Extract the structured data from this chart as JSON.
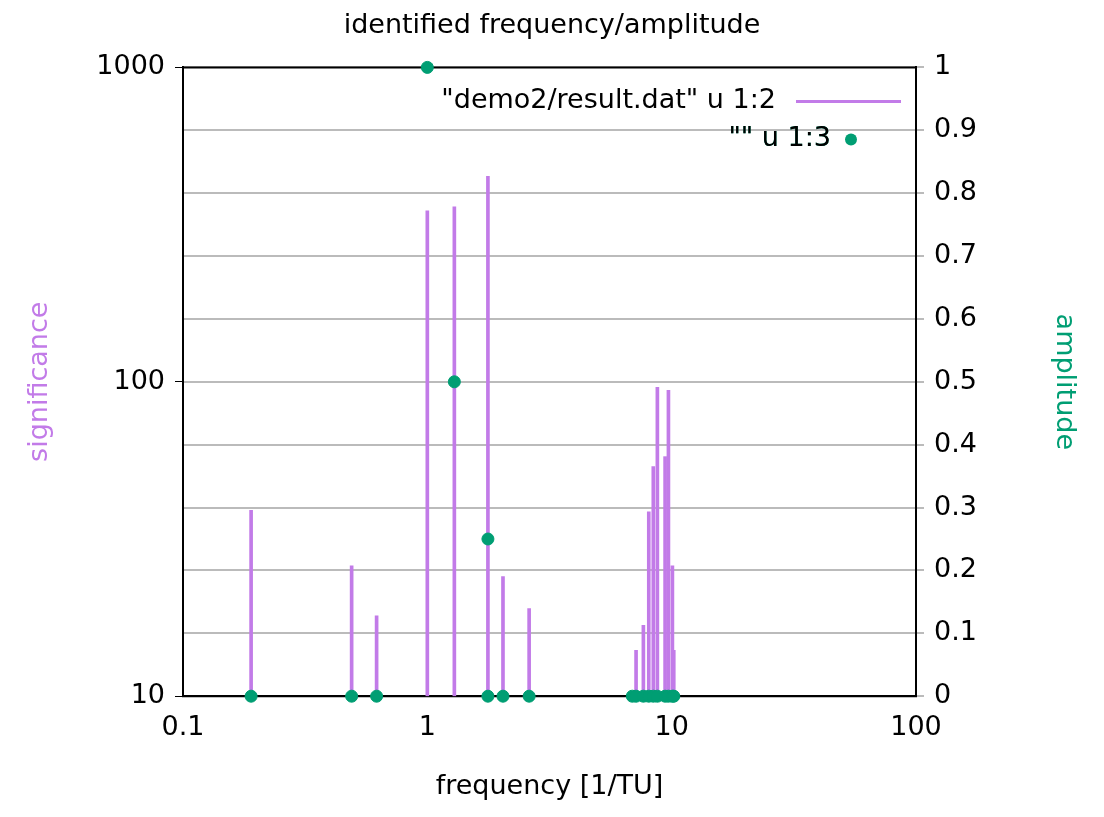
{
  "chart_data": {
    "type": "bar",
    "title": "identified frequency/amplitude",
    "xlabel": "frequency [1/TU]",
    "ylabel": "significance",
    "y2label": "amplitude",
    "log": "xy",
    "xlim": [
      0.1,
      100
    ],
    "xticks": [
      0.1,
      1,
      10,
      100
    ],
    "ylim": [
      10,
      1000
    ],
    "yticks": [
      10,
      100,
      1000
    ],
    "y2lim": [
      0,
      1
    ],
    "y2ticks": [
      0,
      0.1,
      0.2,
      0.3,
      0.4,
      0.5,
      0.6,
      0.7,
      0.8,
      0.9,
      1
    ],
    "grid": "y",
    "legend": "top right",
    "marker": "circle",
    "series": [
      {
        "name": "\"demo2/result.dat\" u 1:2",
        "color": "#c27be8",
        "x": [
          0.19,
          0.49,
          0.62,
          1.0,
          1.29,
          1.77,
          2.04,
          2.61,
          7.15,
          7.66,
          8.06,
          8.41,
          8.74,
          9.4,
          9.7,
          10.07,
          10.2
        ],
        "values": [
          39,
          26,
          18,
          350,
          360,
          450,
          24,
          19,
          14,
          16.8,
          38.6,
          53.7,
          96,
          57.8,
          94,
          26,
          14
        ]
      },
      {
        "name": "\"\" u 1:3",
        "type": "scatter",
        "axis": "y2",
        "color": "#009e73",
        "x": [
          0.19,
          0.49,
          0.62,
          1.0,
          1.29,
          1.77,
          1.77,
          2.04,
          2.61,
          6.9,
          7.15,
          7.66,
          8.06,
          8.41,
          8.74,
          9.4,
          9.7,
          10.07,
          10.2
        ],
        "values": [
          0,
          0,
          0,
          1,
          0.5,
          0.25,
          0,
          0,
          0,
          0,
          0,
          0,
          0,
          0,
          0,
          0,
          0,
          0,
          0
        ]
      }
    ]
  }
}
